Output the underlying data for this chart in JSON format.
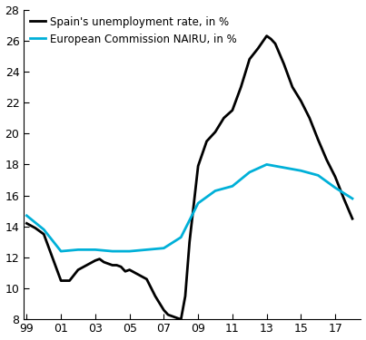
{
  "unemployment_x": [
    1999,
    1999.5,
    2000,
    2000.5,
    2001,
    2001.5,
    2002,
    2002.5,
    2003,
    2003.25,
    2003.5,
    2003.75,
    2004,
    2004.25,
    2004.5,
    2004.75,
    2005,
    2005.5,
    2006,
    2006.5,
    2007,
    2007.25,
    2007.5,
    2007.75,
    2008,
    2008.25,
    2008.5,
    2009,
    2009.5,
    2010,
    2010.5,
    2011,
    2011.5,
    2012,
    2012.5,
    2013,
    2013.25,
    2013.5,
    2014,
    2014.5,
    2015,
    2015.5,
    2016,
    2016.5,
    2017,
    2017.5,
    2018
  ],
  "unemployment_y": [
    14.2,
    13.9,
    13.5,
    12.0,
    10.5,
    10.5,
    11.2,
    11.5,
    11.8,
    11.9,
    11.7,
    11.6,
    11.5,
    11.5,
    11.4,
    11.1,
    11.2,
    10.9,
    10.6,
    9.5,
    8.6,
    8.3,
    8.2,
    8.1,
    8.0,
    9.5,
    13.0,
    17.9,
    19.5,
    20.1,
    21.0,
    21.5,
    23.0,
    24.8,
    25.5,
    26.3,
    26.1,
    25.8,
    24.5,
    23.0,
    22.1,
    21.0,
    19.6,
    18.3,
    17.2,
    15.8,
    14.5
  ],
  "nairu_x": [
    1999,
    2000,
    2001,
    2002,
    2003,
    2004,
    2005,
    2006,
    2007,
    2008,
    2009,
    2010,
    2011,
    2012,
    2013,
    2014,
    2015,
    2016,
    2017,
    2018
  ],
  "nairu_y": [
    14.7,
    13.8,
    12.4,
    12.5,
    12.5,
    12.4,
    12.4,
    12.5,
    12.6,
    13.3,
    15.5,
    16.3,
    16.6,
    17.5,
    18.0,
    17.8,
    17.6,
    17.3,
    16.5,
    15.8
  ],
  "unemployment_color": "#000000",
  "nairu_color": "#00b0d8",
  "unemployment_label": "Spain's unemployment rate, in %",
  "nairu_label": "European Commission NAIRU, in %",
  "ylim": [
    8,
    28
  ],
  "yticks": [
    8,
    10,
    12,
    14,
    16,
    18,
    20,
    22,
    24,
    26,
    28
  ],
  "xticks": [
    1999,
    2001,
    2003,
    2005,
    2007,
    2009,
    2011,
    2013,
    2015,
    2017
  ],
  "xticklabels": [
    "99",
    "01",
    "03",
    "05",
    "07",
    "09",
    "11",
    "13",
    "15",
    "17"
  ],
  "xlim": [
    1998.8,
    2018.5
  ],
  "linewidth": 2.0,
  "background_color": "#ffffff",
  "legend_fontsize": 8.5,
  "tick_fontsize": 9.0
}
